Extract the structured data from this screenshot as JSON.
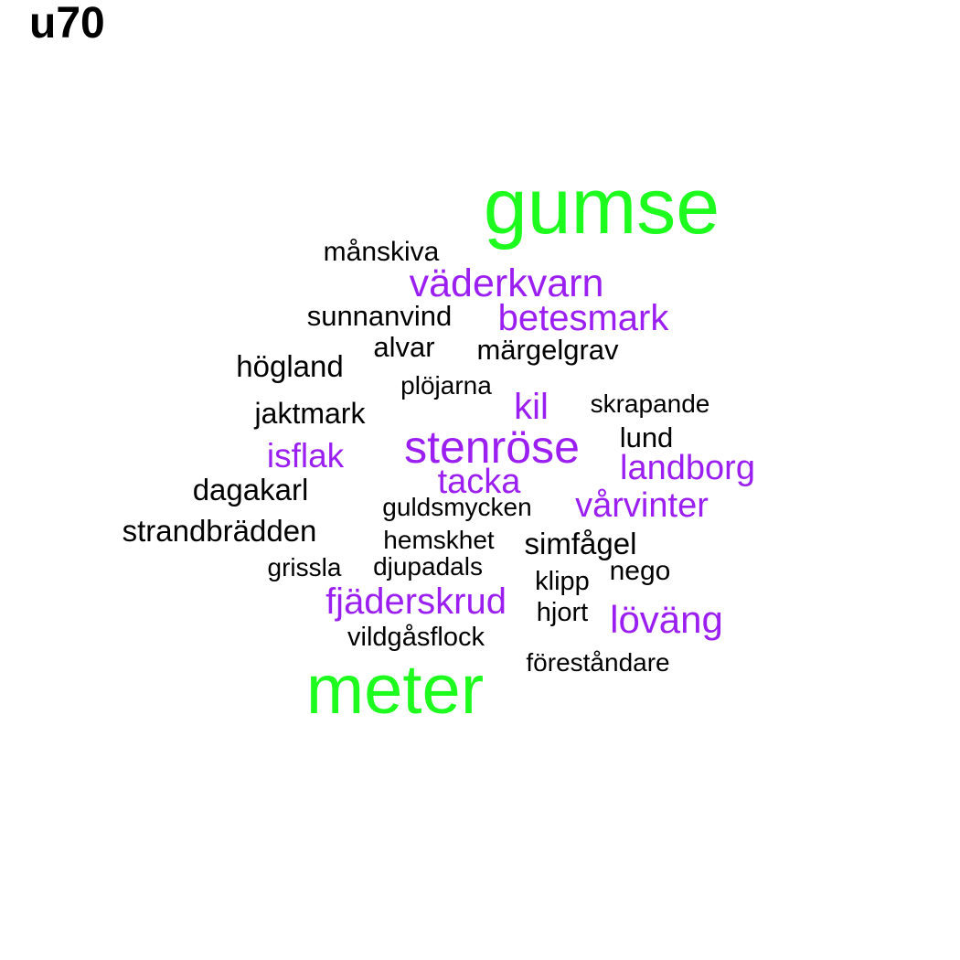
{
  "title": "u70",
  "colors": {
    "green": "#1efb1e",
    "purple": "#9b1ff0",
    "black": "#000000"
  },
  "words": [
    {
      "text": "gumse",
      "color": "green"
    },
    {
      "text": "meter",
      "color": "green"
    },
    {
      "text": "stenröse",
      "color": "purple"
    },
    {
      "text": "väderkvarn",
      "color": "purple"
    },
    {
      "text": "betesmark",
      "color": "purple"
    },
    {
      "text": "fjäderskrud",
      "color": "purple"
    },
    {
      "text": "landborg",
      "color": "purple"
    },
    {
      "text": "vårvinter",
      "color": "purple"
    },
    {
      "text": "löväng",
      "color": "purple"
    },
    {
      "text": "tacka",
      "color": "purple"
    },
    {
      "text": "kil",
      "color": "purple"
    },
    {
      "text": "isflak",
      "color": "purple"
    },
    {
      "text": "månskiva",
      "color": "black"
    },
    {
      "text": "sunnanvind",
      "color": "black"
    },
    {
      "text": "alvar",
      "color": "black"
    },
    {
      "text": "märgelgrav",
      "color": "black"
    },
    {
      "text": "högland",
      "color": "black"
    },
    {
      "text": "plöjarna",
      "color": "black"
    },
    {
      "text": "jaktmark",
      "color": "black"
    },
    {
      "text": "skrapande",
      "color": "black"
    },
    {
      "text": "lund",
      "color": "black"
    },
    {
      "text": "dagakarl",
      "color": "black"
    },
    {
      "text": "guldsmycken",
      "color": "black"
    },
    {
      "text": "strandbrädden",
      "color": "black"
    },
    {
      "text": "hemskhet",
      "color": "black"
    },
    {
      "text": "simfågel",
      "color": "black"
    },
    {
      "text": "grissla",
      "color": "black"
    },
    {
      "text": "djupadals",
      "color": "black"
    },
    {
      "text": "klipp",
      "color": "black"
    },
    {
      "text": "nego",
      "color": "black"
    },
    {
      "text": "hjort",
      "color": "black"
    },
    {
      "text": "vildgåsflock",
      "color": "black"
    },
    {
      "text": "föreståndare",
      "color": "black"
    }
  ]
}
